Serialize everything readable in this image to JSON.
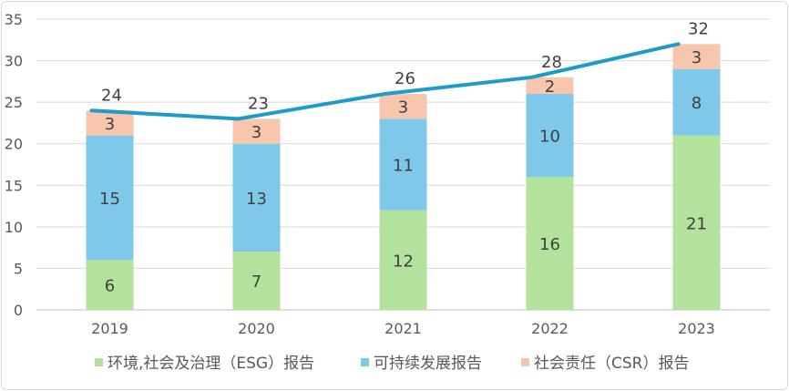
{
  "chart_data": {
    "type": "bar",
    "stacked": true,
    "categories": [
      "2019",
      "2020",
      "2021",
      "2022",
      "2023"
    ],
    "series": [
      {
        "name": "环境,社会及治理（ESG）报告",
        "values": [
          6,
          7,
          12,
          16,
          21
        ],
        "color": "#b3e29d"
      },
      {
        "name": "可持续发展报告",
        "values": [
          15,
          13,
          11,
          10,
          8
        ],
        "color": "#7ec8ea"
      },
      {
        "name": "社会责任（CSR）报告",
        "values": [
          3,
          3,
          3,
          2,
          3
        ],
        "color": "#f8c6ad"
      }
    ],
    "totals": {
      "values": [
        24,
        23,
        26,
        28,
        32
      ],
      "type": "line",
      "color": "#1f9bc9"
    },
    "yticks": [
      "0",
      "5",
      "10",
      "15",
      "20",
      "25",
      "30",
      "35"
    ],
    "ylim": [
      0,
      35
    ],
    "grid": true,
    "legend_position": "bottom"
  }
}
